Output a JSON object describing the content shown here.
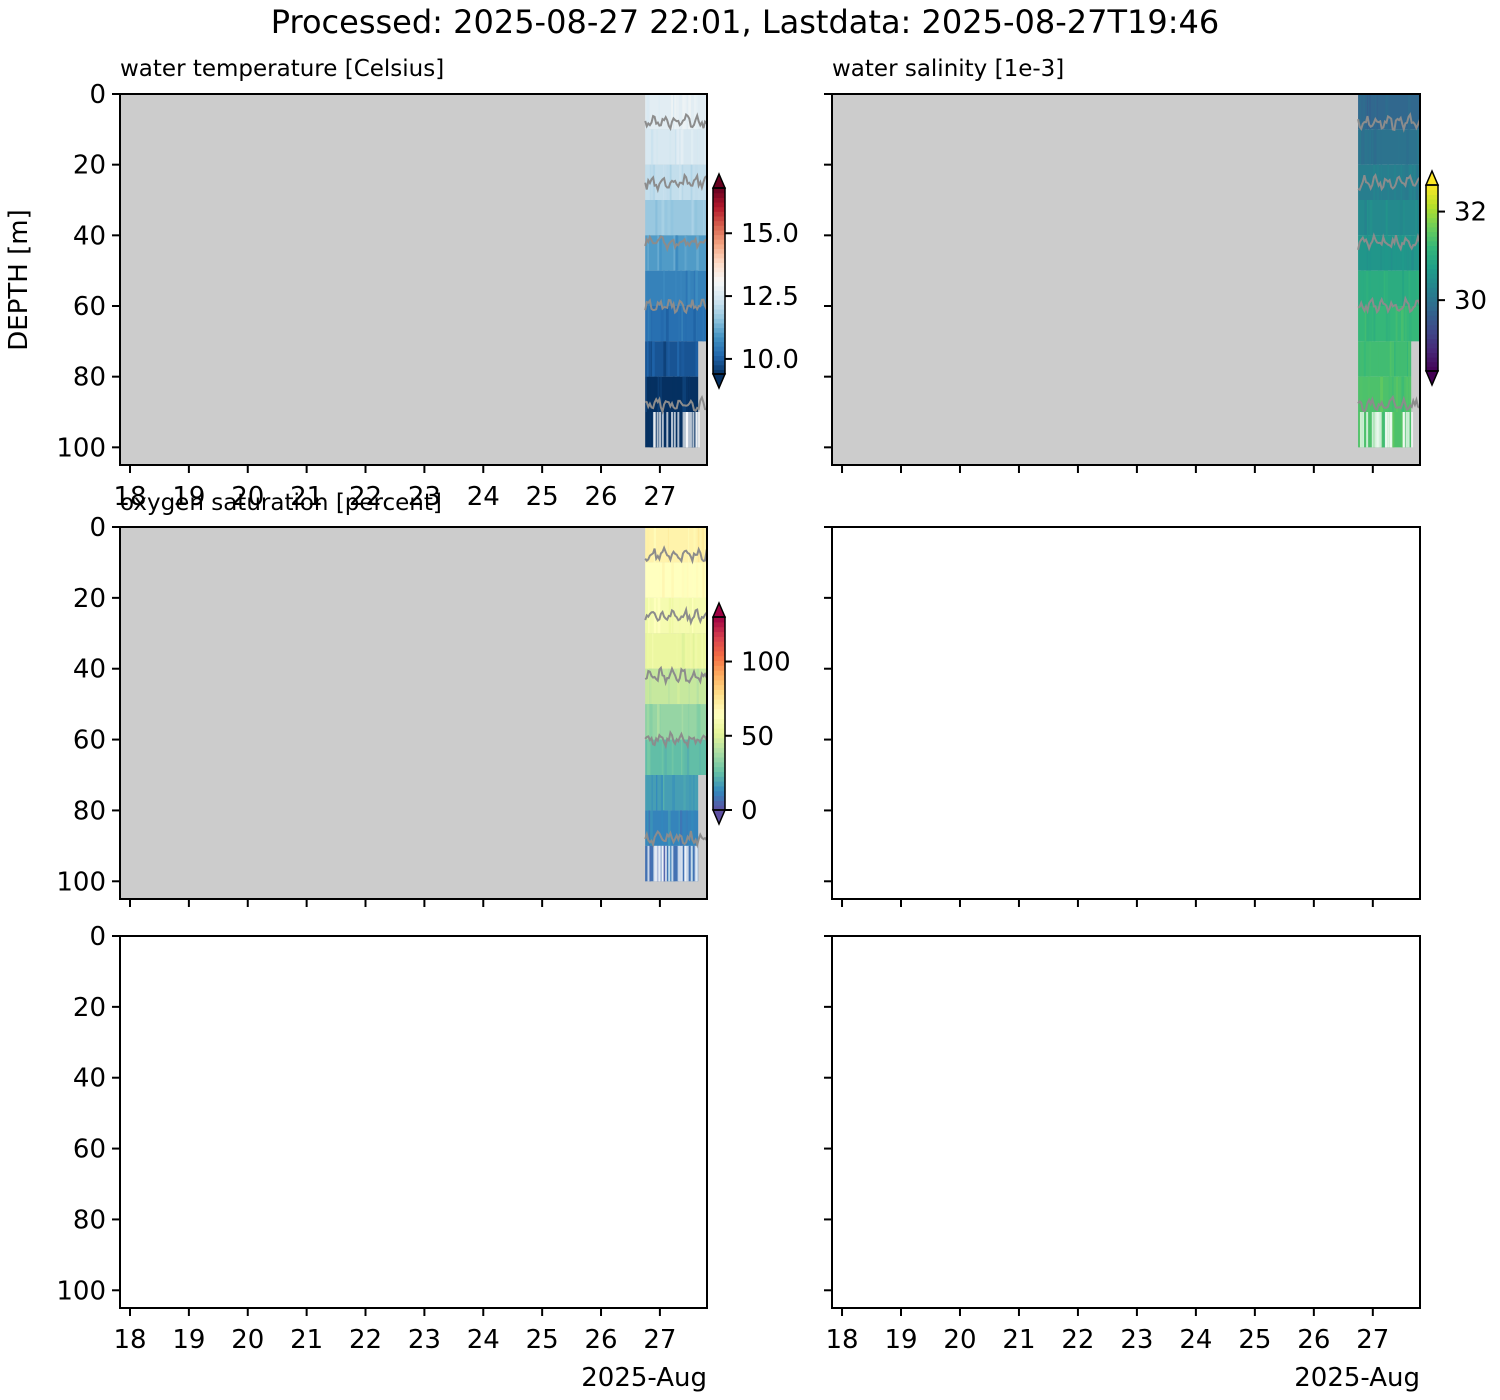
{
  "figure": {
    "title": "Processed: 2025-08-27 22:01, Lastdata: 2025-08-27T19:46",
    "ylabel": "DEPTH [m]",
    "x_offset_label": "2025-Aug",
    "nodata_color": "#cccccc"
  },
  "chart_data": [
    {
      "type": "heatmap",
      "panel": "top-left",
      "title": "water temperature [Celsius]",
      "xlabel": "",
      "ylabel": "DEPTH [m]",
      "x_tick_labels": [
        "18",
        "19",
        "20",
        "21",
        "22",
        "23",
        "24",
        "25",
        "26",
        "27"
      ],
      "x_ticks_days": [
        18,
        19,
        20,
        21,
        22,
        23,
        24,
        25,
        26,
        27
      ],
      "xlim_days": [
        17.83,
        27.8
      ],
      "y_ticks": [
        0,
        20,
        40,
        60,
        80,
        100
      ],
      "ylim": [
        105,
        0
      ],
      "data_start_day": 26.75,
      "data_end_day": 27.82,
      "depth_bins": [
        0,
        10,
        20,
        30,
        40,
        50,
        60,
        70,
        80,
        90,
        100
      ],
      "values": [
        12.7,
        12.5,
        12.2,
        11.7,
        11.0,
        10.6,
        10.3,
        9.9,
        9.4,
        9.2
      ],
      "colorbar": {
        "colormap": "RdBu_r",
        "range": [
          9.4,
          16.8
        ],
        "ticks": [
          10.0,
          12.5,
          15.0
        ],
        "tick_labels": [
          "10.0",
          "12.5",
          "15.0"
        ],
        "extend": "both"
      }
    },
    {
      "type": "heatmap",
      "panel": "top-right",
      "title": "water salinity [1e-3]",
      "xlabel": "",
      "ylabel": "",
      "x_tick_labels": [],
      "x_ticks_days": [
        18,
        19,
        20,
        21,
        22,
        23,
        24,
        25,
        26,
        27
      ],
      "xlim_days": [
        17.83,
        27.8
      ],
      "y_ticks": [
        0,
        20,
        40,
        60,
        80,
        100
      ],
      "ylim": [
        105,
        0
      ],
      "data_start_day": 26.75,
      "data_end_day": 27.82,
      "depth_bins": [
        0,
        10,
        20,
        30,
        40,
        50,
        60,
        70,
        80,
        90,
        100
      ],
      "values": [
        29.8,
        30.0,
        30.2,
        30.4,
        30.6,
        31.0,
        31.2,
        31.3,
        31.4,
        31.4
      ],
      "colorbar": {
        "colormap": "viridis",
        "range": [
          28.4,
          32.6
        ],
        "ticks": [
          30,
          32
        ],
        "tick_labels": [
          "30",
          "32"
        ],
        "extend": "both"
      }
    },
    {
      "type": "heatmap",
      "panel": "middle-left",
      "title": "oxygen saturation [percent]",
      "xlabel": "",
      "ylabel": "",
      "x_tick_labels": [],
      "x_ticks_days": [
        18,
        19,
        20,
        21,
        22,
        23,
        24,
        25,
        26,
        27
      ],
      "xlim_days": [
        17.83,
        27.8
      ],
      "y_ticks": [
        0,
        20,
        40,
        60,
        80,
        100
      ],
      "ylim": [
        105,
        0
      ],
      "data_start_day": 26.75,
      "data_end_day": 27.82,
      "depth_bins": [
        0,
        10,
        20,
        30,
        40,
        50,
        60,
        70,
        80,
        90,
        100
      ],
      "values": [
        70,
        65,
        60,
        55,
        45,
        35,
        25,
        18,
        12,
        8
      ],
      "colorbar": {
        "colormap": "Spectral_r",
        "range": [
          0,
          130
        ],
        "ticks": [
          0,
          50,
          100
        ],
        "tick_labels": [
          "0",
          "50",
          "100"
        ],
        "extend": "both"
      }
    },
    {
      "type": "heatmap",
      "panel": "middle-right",
      "title": "",
      "x_tick_labels": [],
      "x_ticks_days": [
        18,
        19,
        20,
        21,
        22,
        23,
        24,
        25,
        26,
        27
      ],
      "xlim_days": [
        17.83,
        27.8
      ],
      "y_ticks": [
        0,
        20,
        40,
        60,
        80,
        100
      ],
      "ylim": [
        105,
        0
      ],
      "empty": true
    },
    {
      "type": "heatmap",
      "panel": "bottom-left",
      "title": "",
      "x_tick_labels": [
        "18",
        "19",
        "20",
        "21",
        "22",
        "23",
        "24",
        "25",
        "26",
        "27"
      ],
      "x_ticks_days": [
        18,
        19,
        20,
        21,
        22,
        23,
        24,
        25,
        26,
        27
      ],
      "xlim_days": [
        17.83,
        27.8
      ],
      "y_tick_labels": [
        "0",
        "20",
        "40",
        "60",
        "80",
        "100"
      ],
      "y_ticks": [
        0,
        20,
        40,
        60,
        80,
        100
      ],
      "ylim": [
        105,
        0
      ],
      "empty": true
    },
    {
      "type": "heatmap",
      "panel": "bottom-right",
      "title": "",
      "x_tick_labels": [
        "18",
        "19",
        "20",
        "21",
        "22",
        "23",
        "24",
        "25",
        "26",
        "27"
      ],
      "x_ticks_days": [
        18,
        19,
        20,
        21,
        22,
        23,
        24,
        25,
        26,
        27
      ],
      "xlim_days": [
        17.83,
        27.8
      ],
      "y_ticks": [
        0,
        20,
        40,
        60,
        80,
        100
      ],
      "ylim": [
        105,
        0
      ],
      "empty": true
    }
  ]
}
